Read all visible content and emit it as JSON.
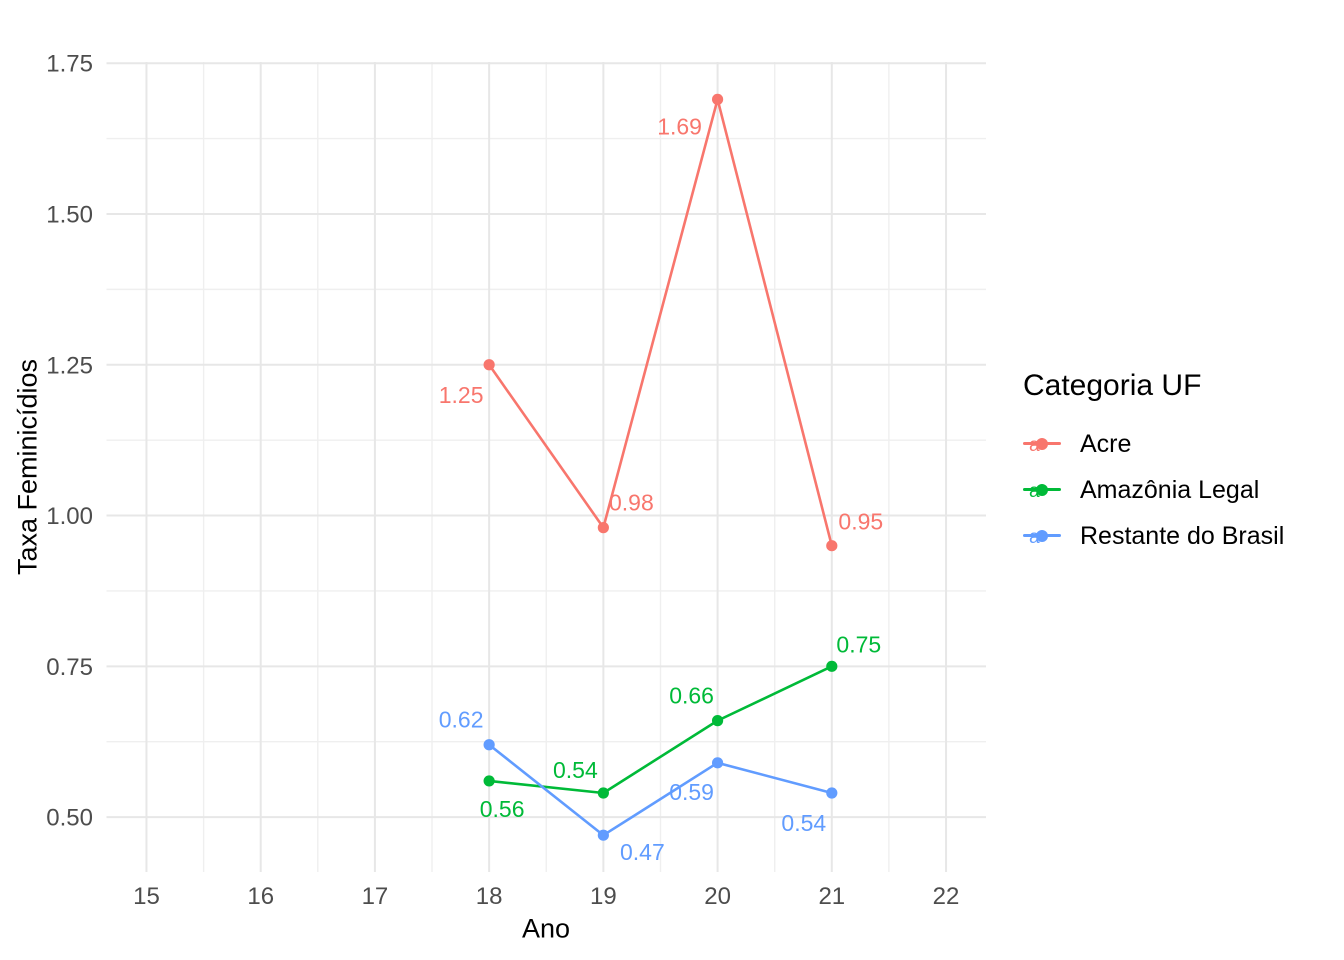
{
  "figure": {
    "background": "#ffffff"
  },
  "axes": {
    "x": {
      "title": "Ano",
      "tick_labels": [
        "15",
        "16",
        "17",
        "18",
        "19",
        "20",
        "21",
        "22"
      ],
      "tick_values": [
        15,
        16,
        17,
        18,
        19,
        20,
        21,
        22
      ],
      "minor_values": [
        15.5,
        16.5,
        17.5,
        18.5,
        19.5,
        20.5,
        21.5
      ],
      "lim": [
        14.65,
        22.35
      ]
    },
    "y": {
      "title": "Taxa Feminicídios",
      "tick_labels": [
        "0.50",
        "0.75",
        "1.00",
        "1.25",
        "1.50",
        "1.75"
      ],
      "tick_values": [
        0.5,
        0.75,
        1.0,
        1.25,
        1.5,
        1.75
      ],
      "minor_values": [
        0.625,
        0.875,
        1.125,
        1.375,
        1.625
      ],
      "lim": [
        0.409,
        1.752
      ]
    }
  },
  "legend": {
    "title": "Categoria UF",
    "key_glyph": "a",
    "position": "right",
    "items": [
      {
        "label": "Acre",
        "color": "#F8766D"
      },
      {
        "label": "Amazônia Legal",
        "color": "#00BA38"
      },
      {
        "label": "Restante do Brasil",
        "color": "#619CFF"
      }
    ]
  },
  "chart_data": {
    "type": "line",
    "title": "",
    "xlabel": "Ano",
    "ylabel": "Taxa Feminicídios",
    "x": [
      18,
      19,
      20,
      21
    ],
    "series": [
      {
        "name": "Acre",
        "color": "#F8766D",
        "values": [
          1.25,
          0.98,
          1.69,
          0.95
        ],
        "point_labels": [
          "1.25",
          "0.98",
          "1.69",
          "0.95"
        ],
        "label_offsets": [
          [
            -28,
            30
          ],
          [
            28,
            -25
          ],
          [
            -38,
            27
          ],
          [
            29,
            -24
          ]
        ]
      },
      {
        "name": "Amazônia Legal",
        "color": "#00BA38",
        "values": [
          0.56,
          0.54,
          0.66,
          0.75
        ],
        "point_labels": [
          "0.56",
          "0.54",
          "0.66",
          "0.75"
        ],
        "label_offsets": [
          [
            13,
            28
          ],
          [
            -28,
            -23
          ],
          [
            -26,
            -25
          ],
          [
            27,
            -22
          ]
        ]
      },
      {
        "name": "Restante do Brasil",
        "color": "#619CFF",
        "values": [
          0.62,
          0.47,
          0.59,
          0.54
        ],
        "point_labels": [
          "0.62",
          "0.47",
          "0.59",
          "0.54"
        ],
        "label_offsets": [
          [
            -28,
            -25
          ],
          [
            39,
            17
          ],
          [
            -26,
            29
          ],
          [
            -28,
            30
          ]
        ]
      }
    ],
    "xlim": [
      14.65,
      22.35
    ],
    "ylim": [
      0.409,
      1.752
    ],
    "grid": true,
    "legend_position": "right"
  },
  "colors": {
    "grid_major": "#E7E7E7",
    "grid_minor": "#EFEFEF",
    "tick_text": "#4D4D4D",
    "axis_title_text": "#000000"
  }
}
